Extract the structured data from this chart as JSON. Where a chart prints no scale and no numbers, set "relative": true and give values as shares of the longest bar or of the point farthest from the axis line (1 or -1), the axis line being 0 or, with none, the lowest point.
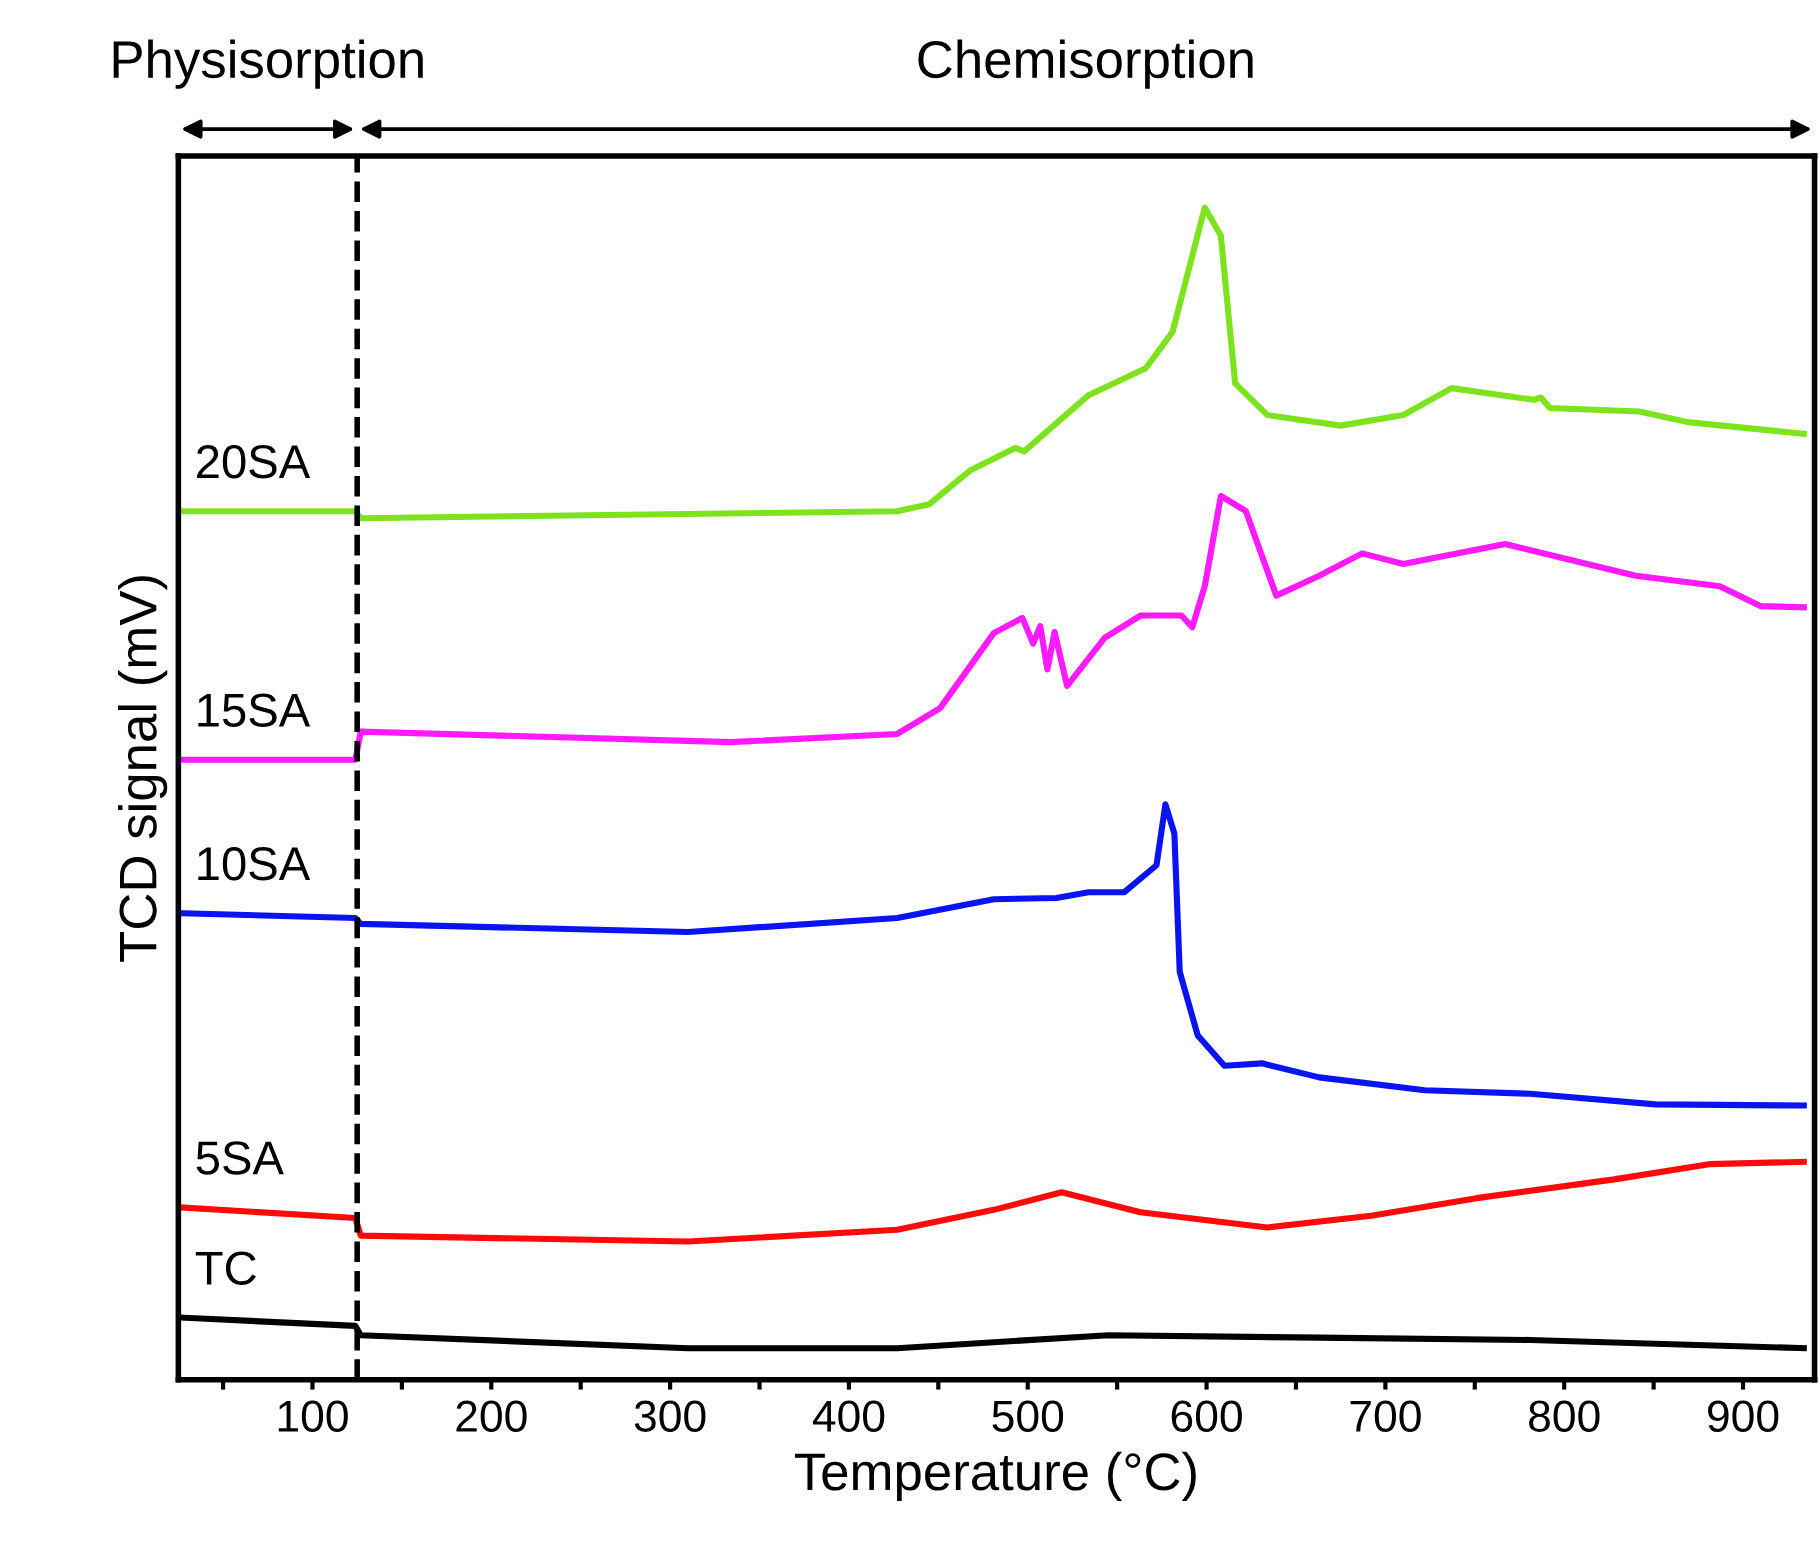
{
  "chart_data": {
    "type": "line",
    "relative": true,
    "xlabel": "Temperature (°C)",
    "ylabel": "TCD signal (mV)",
    "xlim": [
      25,
      940
    ],
    "xticks": [
      {
        "value": 50,
        "label": null
      },
      100,
      {
        "value": 150,
        "label": null
      },
      200,
      {
        "value": 250,
        "label": null
      },
      300,
      {
        "value": 350,
        "label": null
      },
      400,
      {
        "value": 450,
        "label": null
      },
      500,
      {
        "value": 550,
        "label": null
      },
      600,
      {
        "value": 650,
        "label": null
      },
      700,
      {
        "value": 750,
        "label": null
      },
      800,
      {
        "value": 850,
        "label": null
      },
      900
    ],
    "grid": false,
    "legend": false,
    "marker": "none",
    "line_style": "solid",
    "ref_lines": [
      {
        "axis": "x",
        "value": 125,
        "color": "#000000",
        "line_style": "dashed"
      }
    ],
    "annotations": [
      "Physisorption",
      "Chemisorption"
    ],
    "series": [
      {
        "name": "20SA",
        "color": "#7ee21f",
        "x": [
          28,
          124,
          127,
          427,
          445,
          468,
          493,
          498,
          534,
          566,
          581,
          599,
          608,
          616,
          634,
          675,
          710,
          737,
          783,
          787,
          792,
          842,
          869,
          934
        ],
        "values": [
          0.741,
          0.741,
          0.735,
          0.741,
          0.747,
          0.776,
          0.795,
          0.792,
          0.84,
          0.863,
          0.894,
          1.0,
          0.976,
          0.85,
          0.823,
          0.814,
          0.823,
          0.846,
          0.836,
          0.838,
          0.829,
          0.826,
          0.817,
          0.807
        ]
      },
      {
        "name": "15SA",
        "color": "#ff1aff",
        "x": [
          28,
          124,
          127,
          334,
          427,
          451,
          481,
          497,
          503,
          507,
          511,
          515,
          522,
          543,
          563,
          586,
          592,
          599,
          608,
          622,
          639,
          663,
          687,
          710,
          767,
          840,
          887,
          910,
          934
        ],
        "values": [
          0.529,
          0.529,
          0.553,
          0.544,
          0.551,
          0.573,
          0.637,
          0.65,
          0.628,
          0.643,
          0.606,
          0.638,
          0.592,
          0.633,
          0.652,
          0.652,
          0.642,
          0.677,
          0.754,
          0.741,
          0.669,
          0.686,
          0.705,
          0.696,
          0.713,
          0.686,
          0.677,
          0.66,
          0.659
        ]
      },
      {
        "name": "10SA",
        "color": "#0a14f0",
        "x": [
          28,
          124,
          127,
          310,
          427,
          481,
          516,
          534,
          554,
          572,
          577,
          582,
          585,
          595,
          610,
          631,
          663,
          722,
          781,
          851,
          934
        ],
        "values": [
          0.398,
          0.394,
          0.389,
          0.382,
          0.394,
          0.41,
          0.411,
          0.416,
          0.416,
          0.439,
          0.491,
          0.466,
          0.348,
          0.294,
          0.268,
          0.27,
          0.258,
          0.247,
          0.244,
          0.235,
          0.234
        ]
      },
      {
        "name": "5SA",
        "color": "#ff0a0a",
        "x": [
          28,
          124,
          127,
          310,
          427,
          481,
          519,
          563,
          634,
          692,
          751,
          828,
          881,
          934
        ],
        "values": [
          0.147,
          0.138,
          0.123,
          0.118,
          0.128,
          0.145,
          0.16,
          0.143,
          0.13,
          0.14,
          0.155,
          0.171,
          0.184,
          0.186
        ]
      },
      {
        "name": "TC",
        "color": "#000000",
        "x": [
          28,
          124,
          127,
          310,
          427,
          545,
          663,
          781,
          934
        ],
        "values": [
          0.053,
          0.046,
          0.038,
          0.027,
          0.027,
          0.038,
          0.036,
          0.034,
          0.027
        ]
      }
    ]
  }
}
